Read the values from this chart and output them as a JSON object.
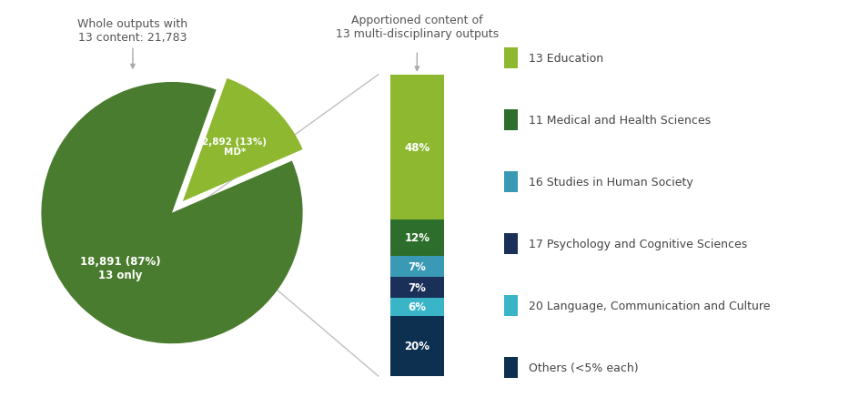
{
  "pie_values": [
    87,
    13
  ],
  "pie_colors": [
    "#4a7c2f",
    "#8db830"
  ],
  "pie_labels_text": [
    "18,891 (87%)\n13 only",
    "2,892 (13%)\nMD*"
  ],
  "pie_explode": [
    0,
    0.12
  ],
  "bar_values": [
    48,
    12,
    7,
    7,
    6,
    20
  ],
  "bar_colors": [
    "#8db830",
    "#2d6e2d",
    "#3a9ab5",
    "#1a3058",
    "#3ab5c8",
    "#0d3050"
  ],
  "bar_labels": [
    "48%",
    "12%",
    "7%",
    "7%",
    "6%",
    "20%"
  ],
  "legend_labels": [
    "13 Education",
    "11 Medical and Health Sciences",
    "16 Studies in Human Society",
    "17 Psychology and Cognitive Sciences",
    "20 Language, Communication and Culture",
    "Others (<5% each)"
  ],
  "legend_colors": [
    "#8db830",
    "#2d6e2d",
    "#3a9ab5",
    "#1a3058",
    "#3ab5c8",
    "#0d3050"
  ],
  "title_pie": "Whole outputs with\n13 content: 21,783",
  "title_bar": "Apportioned content of\n13 multi-disciplinary outputs",
  "background_color": "#ffffff",
  "text_color": "#555555",
  "arrow_color": "#aaaaaa"
}
